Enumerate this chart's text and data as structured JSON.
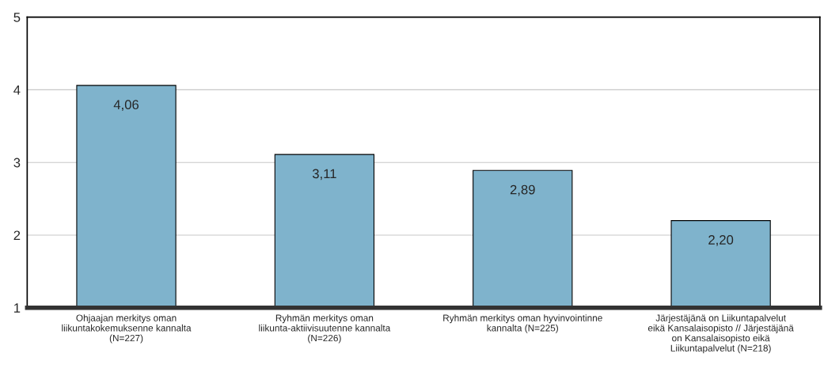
{
  "chart_data": {
    "type": "bar",
    "categories": [
      "Ohjaajan merkitys oman liikuntakokemuksenne kannalta (N=227)",
      "Ryhmän merkitys oman liikunta-aktiivisuutenne kannalta (N=226)",
      "Ryhmän merkitys oman hyvinvointinne kannalta (N=225)",
      "Järjestäjänä on Liikuntapalvelut eikä Kansalaisopisto // Järjestäjänä on Kansalaisopisto eikä Liikuntapalvelut (N=218)"
    ],
    "values": [
      4.06,
      3.11,
      2.89,
      2.2
    ],
    "value_labels": [
      "4,06",
      "3,11",
      "2,89",
      "2,20"
    ],
    "color": "#7fb3cc",
    "ylim": [
      1,
      5
    ],
    "yticks": [
      1,
      2,
      3,
      4,
      5
    ],
    "grid": "y",
    "legend": false
  }
}
